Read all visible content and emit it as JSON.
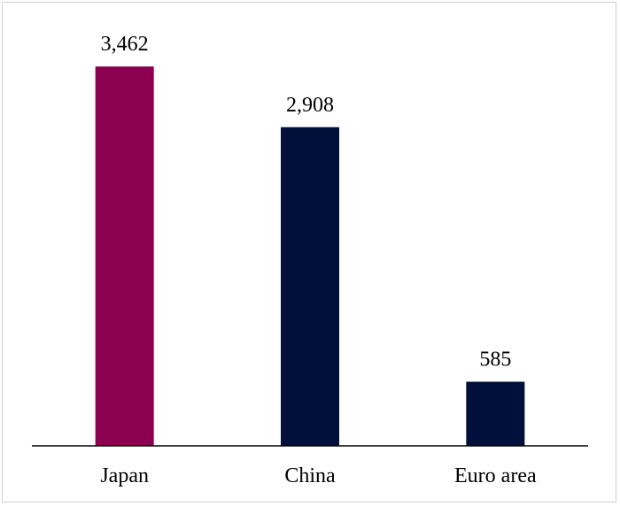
{
  "chart_data": {
    "type": "bar",
    "categories": [
      "Japan",
      "China",
      "Euro area"
    ],
    "values": [
      3462,
      2908,
      585
    ],
    "value_labels": [
      "3,462",
      "2,908",
      "585"
    ],
    "colors": [
      "#8b0050",
      "#00103a",
      "#00103a"
    ],
    "ylim": [
      0,
      3560
    ],
    "title": "",
    "xlabel": "",
    "ylabel": "",
    "grid": false,
    "legend": false
  }
}
